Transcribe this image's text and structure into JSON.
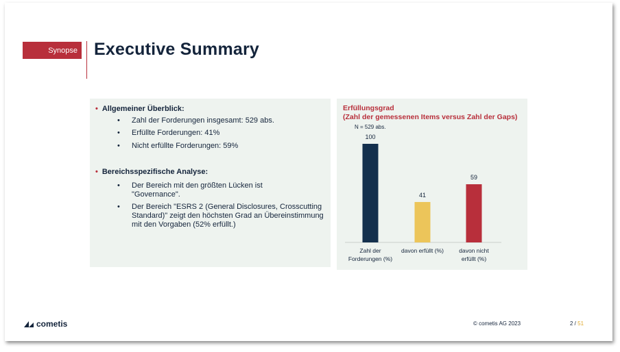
{
  "header": {
    "tag": "Synopse",
    "title": "Executive Summary"
  },
  "overview": {
    "heading": "Allgemeiner Überblick:",
    "items": [
      "Zahl der Forderungen insgesamt: 529 abs.",
      "Erfüllte Forderungen: 41%",
      "Nicht erfüllte Forderungen: 59%"
    ]
  },
  "analysis": {
    "heading": "Bereichsspezifische Analyse:",
    "items": [
      "Der Bereich mit den größten Lücken ist \"Governance\".",
      "Der Bereich \"ESRS 2 (General Disclosures, Crosscutting Standard)\" zeigt den höchsten Grad an Übereinstimmung mit den Vorgaben (52% erfüllt.)"
    ]
  },
  "chart_data": {
    "type": "bar",
    "title": "Erfüllungsgrad",
    "subtitle": "(Zahl der gemessenen Items versus Zahl der Gaps)",
    "annotation": "N = 529 abs.",
    "categories": [
      "Zahl der Forderungen (%)",
      "davon erfüllt (%)",
      "davon nicht erfüllt (%)"
    ],
    "category_lines": [
      [
        "Zahl der",
        "Forderungen (%)"
      ],
      [
        "davon erfüllt (%)"
      ],
      [
        "davon nicht",
        "erfüllt (%)"
      ]
    ],
    "values": [
      100,
      41,
      59
    ],
    "colors": [
      "#14304d",
      "#ecc55a",
      "#b82f3b"
    ],
    "ylim": [
      0,
      100
    ]
  },
  "footer": {
    "logo": "cometis",
    "copyright": "© cometis AG 2023",
    "page": "2",
    "separator": " / ",
    "total": "51"
  }
}
